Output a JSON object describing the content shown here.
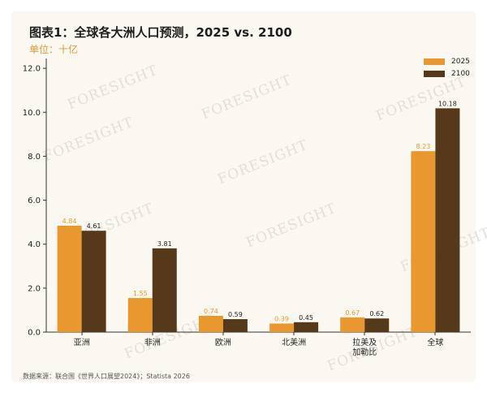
{
  "header": {
    "title": "图表1：全球各大洲人口预测，2025 vs. 2100",
    "unit": "单位：十亿"
  },
  "footer": {
    "source": "数据来源：联合国《世界人口展望2024》；Statista 2026"
  },
  "watermark": {
    "text": "FORESIGHT"
  },
  "colors": {
    "series_2025": "#e8982f",
    "series_2100": "#55391a",
    "label_2025": "#e8982f",
    "label_2100": "#222222",
    "axis": "#333333",
    "background": "#fbf8f2"
  },
  "chart_data": {
    "type": "bar",
    "title": "图表1：全球各大洲人口预测，2025 vs. 2100",
    "subtitle": "单位：十亿",
    "categories": [
      "亚洲",
      "非洲",
      "欧洲",
      "北美洲",
      "拉美及加勒比",
      "全球"
    ],
    "category_lines": [
      [
        "亚洲"
      ],
      [
        "非洲"
      ],
      [
        "欧洲"
      ],
      [
        "北美洲"
      ],
      [
        "拉美及",
        "加勒比"
      ],
      [
        "全球"
      ]
    ],
    "series": [
      {
        "name": "2025",
        "values": [
          4.84,
          1.55,
          0.74,
          0.39,
          0.67,
          8.23
        ],
        "labels": [
          "4.84",
          "1.55",
          "0.74",
          "0.39",
          "0.67",
          "8.23"
        ]
      },
      {
        "name": "2100",
        "values": [
          4.61,
          3.81,
          0.59,
          0.45,
          0.62,
          10.18
        ],
        "labels": [
          "4.61",
          "3.81",
          "0.59",
          "0.45",
          "0.62",
          "10.18"
        ]
      }
    ],
    "y_ticks": [
      0,
      2,
      4,
      6,
      8,
      10,
      12
    ],
    "y_tick_labels": [
      "0.0",
      "2.0",
      "4.0",
      "6.0",
      "8.0",
      "10.0",
      "12.0"
    ],
    "ylim": [
      0,
      12.3
    ],
    "grid": false,
    "legend_position": "top-right"
  }
}
